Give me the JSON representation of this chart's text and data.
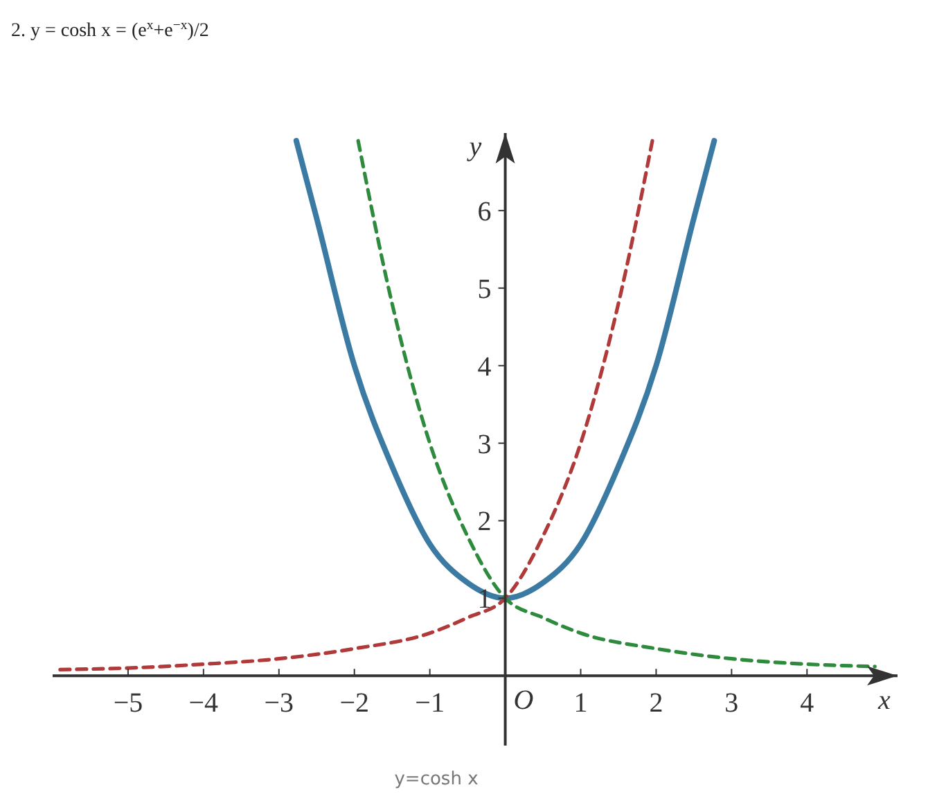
{
  "chart_data": {
    "type": "line",
    "title": "2. y = cosh x = (e$^{x}$+e$^{−x}$)/2",
    "xlabel": "x",
    "ylabel": "y",
    "annotations": [
      "O",
      "y=cosh x"
    ],
    "xlim": [
      -6,
      5.2
    ],
    "ylim": [
      -0.9,
      7
    ],
    "xticks": [
      -5,
      -4,
      -3,
      -2,
      -1,
      1,
      2,
      3,
      4
    ],
    "yticks": [
      1,
      2,
      3,
      4,
      5,
      6
    ],
    "grid": false,
    "marker": "none",
    "series": [
      {
        "color": "#3a7aa3",
        "line_style": "solid",
        "x": [
          -2.77,
          -2.5,
          -2,
          -1.5,
          -1,
          -0.5,
          0,
          0.5,
          1,
          1.5,
          2,
          2.5,
          2.77
        ],
        "values": [
          6.9,
          5.9,
          4.0,
          2.7,
          1.7,
          1.2,
          1,
          1.2,
          1.7,
          2.7,
          4.0,
          5.9,
          6.9
        ]
      },
      {
        "color": "#b03a3a",
        "line_style": "dashed",
        "x": [
          -5.9,
          -5,
          -4,
          -3,
          -2,
          -1,
          -0.5,
          0,
          0.5,
          1,
          1.5,
          1.95
        ],
        "values": [
          0.08,
          0.1,
          0.15,
          0.22,
          0.35,
          0.55,
          0.75,
          1,
          1.8,
          3.0,
          4.8,
          6.9
        ]
      },
      {
        "color": "#2e8b3e",
        "line_style": "dashed",
        "x": [
          -1.95,
          -1.5,
          -1,
          -0.5,
          0,
          0.5,
          1,
          2,
          3,
          4,
          4.9
        ],
        "values": [
          6.9,
          4.8,
          3.0,
          1.8,
          1,
          0.75,
          0.55,
          0.35,
          0.22,
          0.15,
          0.12
        ]
      }
    ]
  }
}
